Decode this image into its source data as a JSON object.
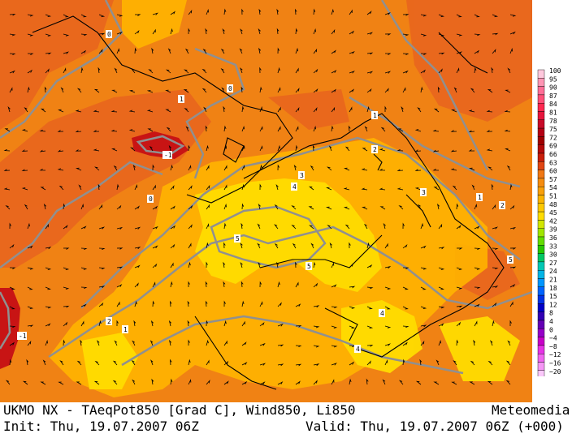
{
  "map": {
    "contour_labels": [
      "0",
      "1",
      "-1",
      "2",
      "3",
      "4",
      "5",
      "0",
      "1",
      "2",
      "3",
      "4",
      "5",
      "1",
      "0",
      "-1",
      "2",
      "1",
      "5",
      "4"
    ],
    "colors": {
      "orange": "#f08214",
      "orange_dark": "#e8641e",
      "yellow_orange": "#ffb400",
      "yellow": "#ffdc00",
      "red": "#c81414",
      "contour": "#909090",
      "coast": "#000000"
    }
  },
  "legend": {
    "ticks": [
      "100",
      "95",
      "90",
      "87",
      "84",
      "81",
      "78",
      "75",
      "72",
      "69",
      "66",
      "63",
      "60",
      "57",
      "54",
      "51",
      "48",
      "45",
      "42",
      "39",
      "36",
      "33",
      "30",
      "27",
      "24",
      "21",
      "18",
      "15",
      "12",
      "8",
      "4",
      "0",
      "−4",
      "−8",
      "−12",
      "−16",
      "−20"
    ],
    "colors": [
      "#ffc8dc",
      "#ff96b4",
      "#ff6e96",
      "#ff5078",
      "#ff2850",
      "#e6143c",
      "#c80a28",
      "#b40014",
      "#a00000",
      "#b40a0a",
      "#c81e0a",
      "#e04614",
      "#f07814",
      "#f58c0f",
      "#f8a00a",
      "#fab400",
      "#fcc800",
      "#ffdc00",
      "#d2e600",
      "#a0e600",
      "#64dc00",
      "#28c800",
      "#00c864",
      "#00c8b4",
      "#00b4e6",
      "#0096ff",
      "#0064ff",
      "#0032e6",
      "#0000c8",
      "#3200b4",
      "#6400b4",
      "#9600c8",
      "#c800c8",
      "#e632e6",
      "#f064f0",
      "#f596f5",
      "#fac8fa"
    ]
  },
  "footer": {
    "line1_left": "UKMO NX - TAeqPot850 [Grad C], Wind850, Li850",
    "line1_right": "Meteomedia",
    "line2_left": "Init: Thu, 19.07.2007 06Z",
    "line2_right": "Valid: Thu, 19.07.2007 06Z (+000)"
  }
}
